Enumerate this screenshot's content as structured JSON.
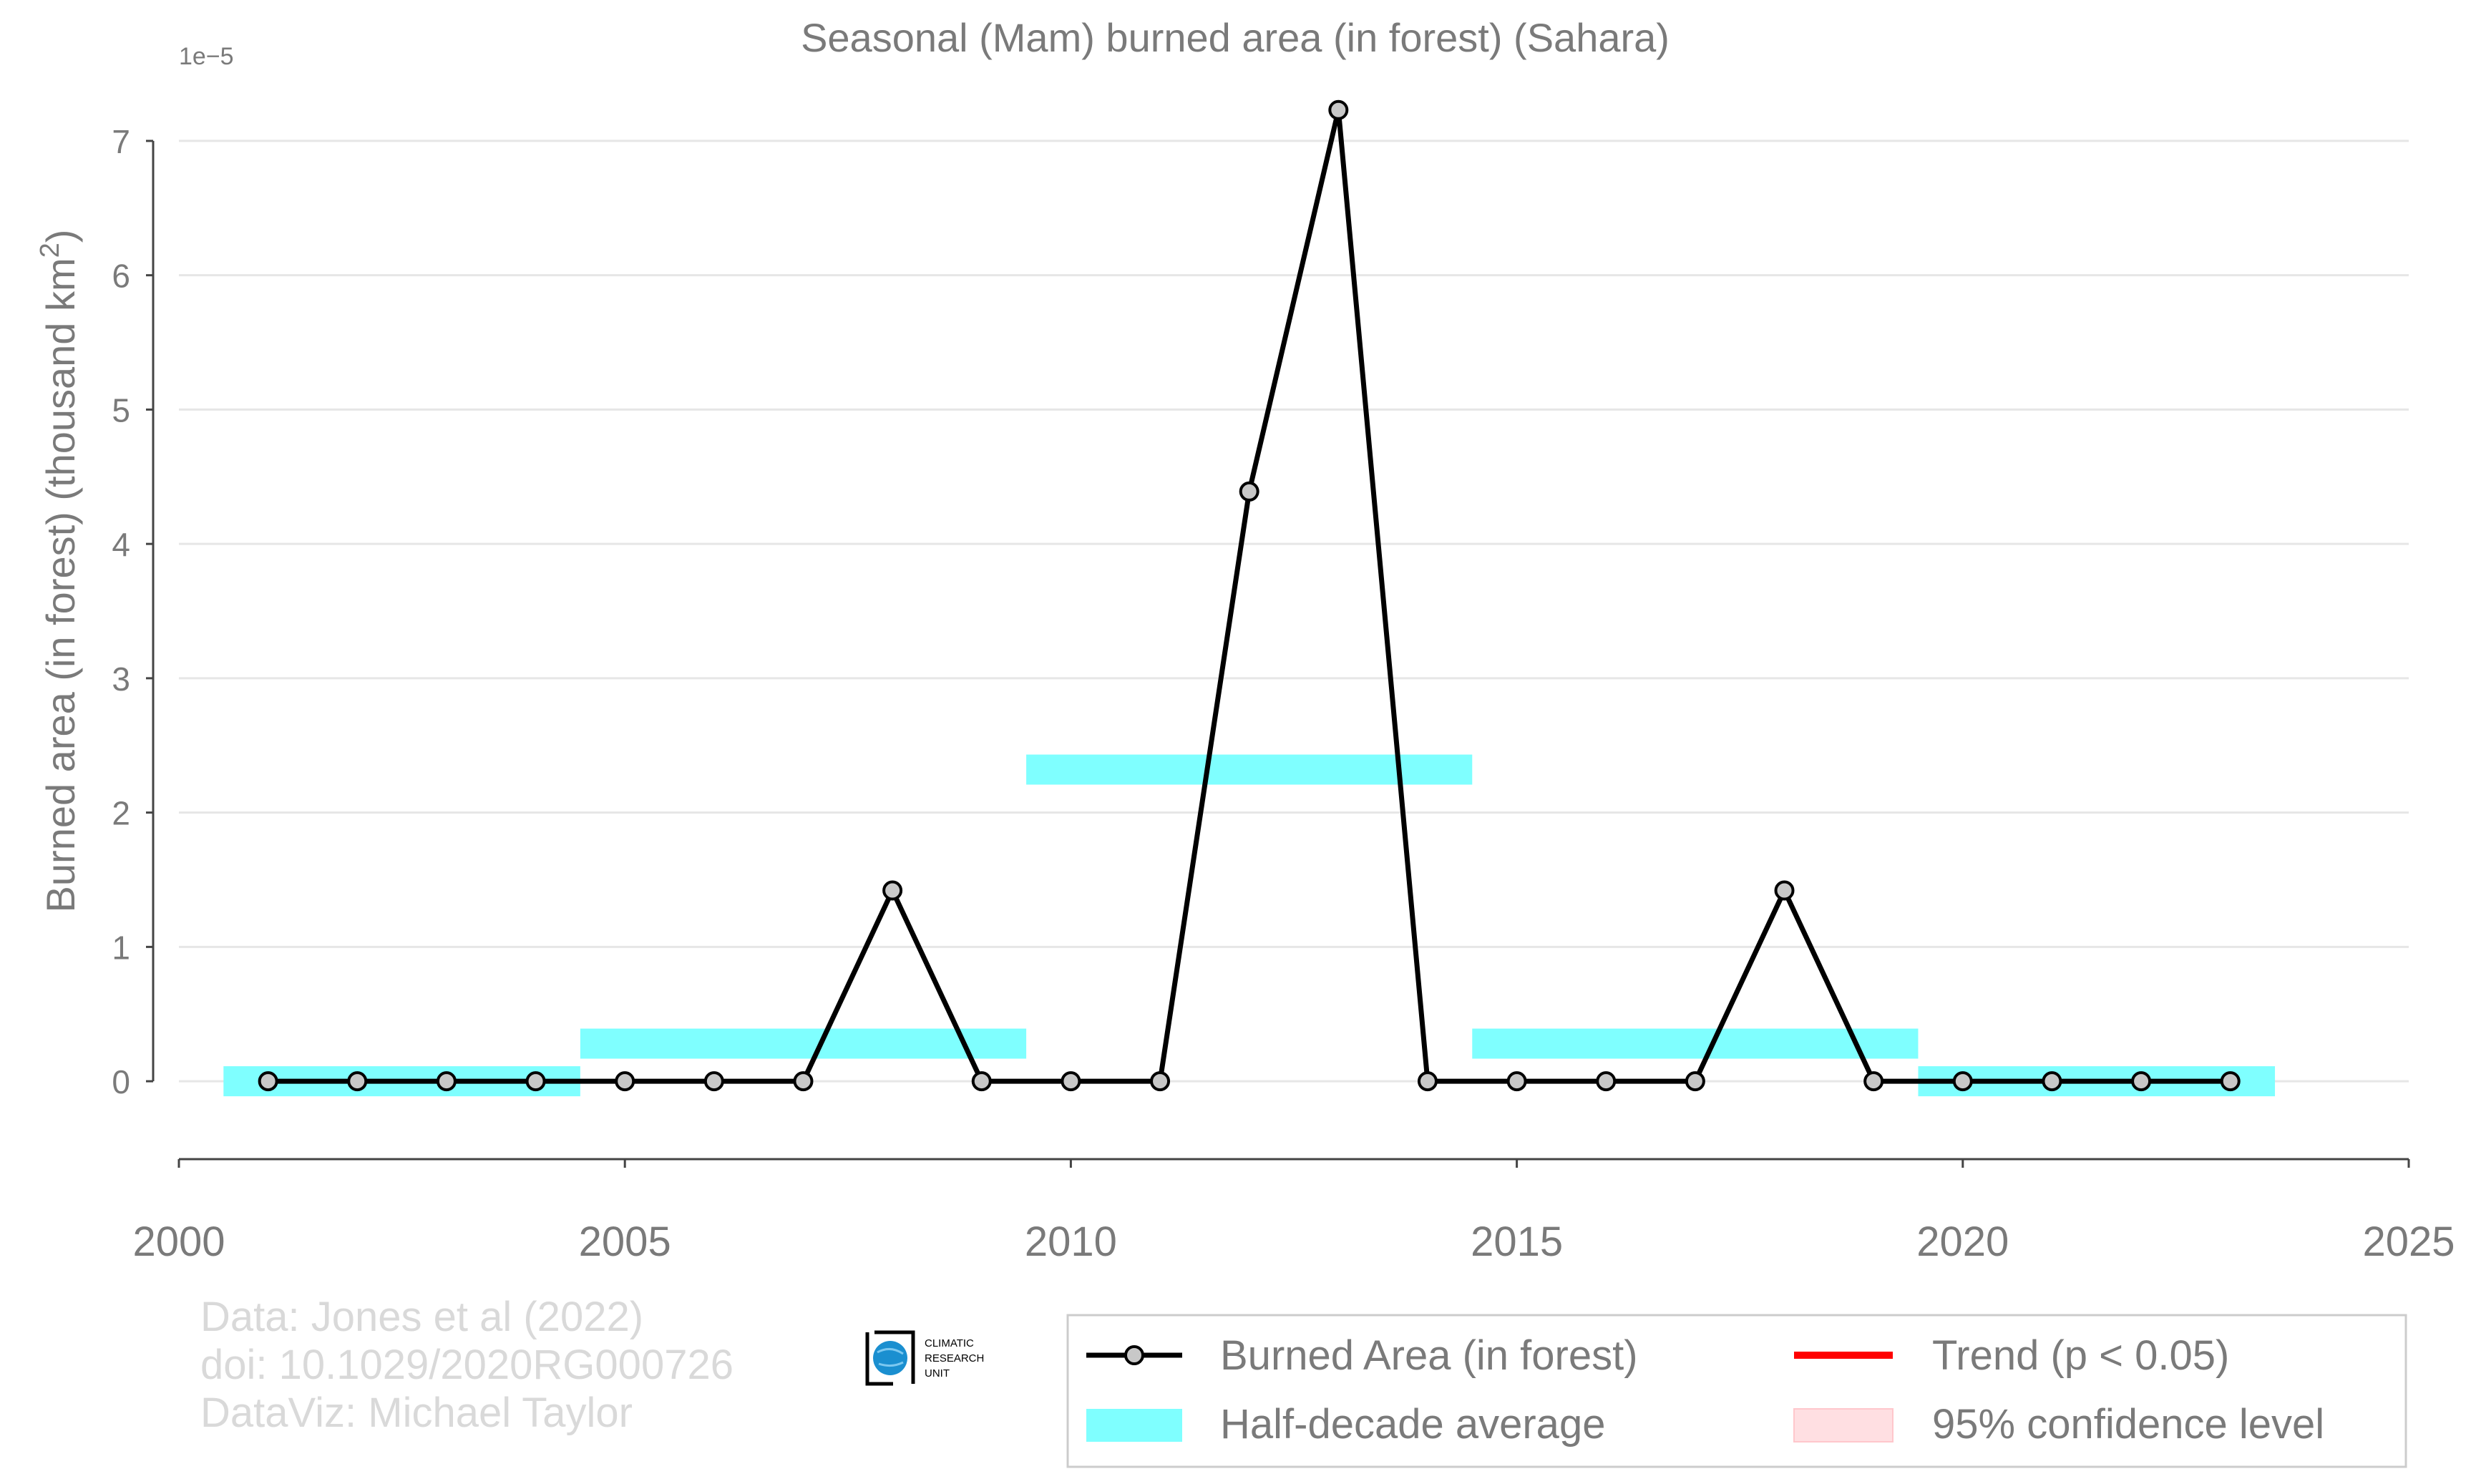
{
  "chart_data": {
    "type": "line",
    "title": "Seasonal (Mam) burned area (in forest) (Sahara)",
    "ylabel": "Burned area (in forest) (thousand km",
    "ylabel_sup": "2",
    "ylabel_close": ")",
    "y_offset_label": "1e−5",
    "y_scale": 1e-05,
    "xlim": [
      2000,
      2025
    ],
    "ylim": [
      -0.58,
      7.25
    ],
    "x_ticks": [
      2000,
      2005,
      2010,
      2015,
      2020,
      2025
    ],
    "y_ticks": [
      0,
      1,
      2,
      3,
      4,
      5,
      6,
      7
    ],
    "grid": "horizontal",
    "legend_position": "bottom-right",
    "series": [
      {
        "name": "Burned Area (in forest)",
        "color": "#000000",
        "marker_fill": "#c8c8c8",
        "x": [
          2001,
          2002,
          2003,
          2004,
          2005,
          2006,
          2007,
          2008,
          2009,
          2010,
          2011,
          2012,
          2013,
          2014,
          2015,
          2016,
          2017,
          2018,
          2019,
          2020,
          2021,
          2022,
          2023
        ],
        "y": [
          0,
          0,
          0,
          0,
          0,
          0,
          0,
          1.42,
          0,
          0,
          0,
          4.39,
          7.23,
          0,
          0,
          0,
          0,
          1.42,
          0,
          0,
          0,
          0,
          0
        ]
      }
    ],
    "half_decade_averages": {
      "name": "Half-decade average",
      "color": "#7fffff",
      "segments": [
        {
          "x0": 2000.5,
          "x1": 2004.5,
          "y": 0.0
        },
        {
          "x0": 2004.5,
          "x1": 2009.5,
          "y": 0.28
        },
        {
          "x0": 2009.5,
          "x1": 2014.5,
          "y": 2.32
        },
        {
          "x0": 2014.5,
          "x1": 2019.5,
          "y": 0.28
        },
        {
          "x0": 2019.5,
          "x1": 2023.5,
          "y": 0.0
        }
      ]
    },
    "legend": [
      {
        "label": "Burned Area (in forest)",
        "kind": "line-marker",
        "color": "#000000"
      },
      {
        "label": "Trend (p < 0.05)",
        "kind": "line",
        "color": "#ff0000"
      },
      {
        "label": "Half-decade average",
        "kind": "band",
        "color": "#7fffff"
      },
      {
        "label": "95% confidence level",
        "kind": "band",
        "color": "#ffdfe2"
      }
    ]
  },
  "credits": {
    "line1": "Data: Jones et al (2022)",
    "line2": "doi: 10.1029/2020RG000726",
    "line3": "DataViz: Michael Taylor"
  },
  "logo": {
    "line1": "CLIMATIC",
    "line2": "RESEARCH",
    "line3": "UNIT",
    "icon": "globe-icon",
    "color": "#1a8fd0"
  }
}
